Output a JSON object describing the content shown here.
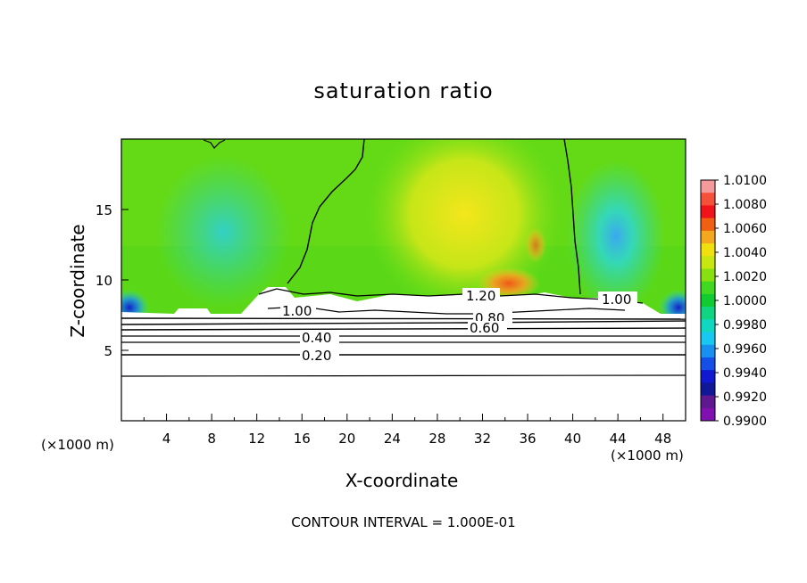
{
  "chart_data": {
    "type": "heatmap",
    "title": "saturation ratio",
    "xlabel": "X-coordinate",
    "ylabel": "Z-coordinate",
    "x_unit_label": "(×1000 m)",
    "xlim": [
      0,
      50
    ],
    "ylim": [
      0,
      20
    ],
    "x_ticks": [
      "4",
      "8",
      "12",
      "16",
      "20",
      "24",
      "28",
      "32",
      "36",
      "40",
      "44",
      "48"
    ],
    "y_ticks": [
      "5",
      "10",
      "15"
    ],
    "colorbar": {
      "labels": [
        "1.0100",
        "1.0080",
        "1.0060",
        "1.0040",
        "1.0020",
        "1.0000",
        "0.9980",
        "0.9960",
        "0.9940",
        "0.9920",
        "0.9900"
      ],
      "colors": [
        "#f59a9a",
        "#f4503a",
        "#f0141a",
        "#f06010",
        "#f4a820",
        "#f0e010",
        "#c8e610",
        "#88e010",
        "#40d820",
        "#10cc30",
        "#10d480",
        "#10d8c0",
        "#18c8f0",
        "#1890f0",
        "#1450e8",
        "#1018d0",
        "#101898",
        "#601890",
        "#8010b0"
      ]
    },
    "contour_interval": "CONTOUR INTERVAL = 1.000E-01",
    "contour_labels": [
      "1.20",
      "1.00",
      "1.00",
      "0.80",
      "0.60",
      "0.40",
      "0.20"
    ],
    "fields": {
      "above_boundary_layer": "near 1.000 (green), ~1.002–1.004 (yellow/orange) between x=24 and x=38, ~0.996–0.998 (cyan) near x=8–10 and x=44–46",
      "below_z_8": "layered contours decreasing from ~1.0 at z≈7.5 to 0.20 at z≈4.8"
    }
  }
}
